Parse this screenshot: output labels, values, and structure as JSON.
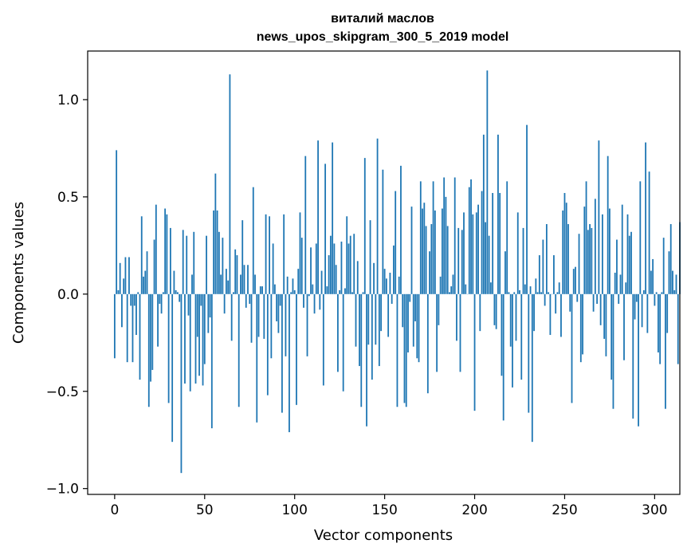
{
  "chart_data": {
    "type": "bar",
    "title": "виталий маслов",
    "subtitle": "news_upos_skipgram_300_5_2019 model",
    "xlabel": "Vector components",
    "ylabel": "Components values",
    "xlim": [
      -15,
      314
    ],
    "ylim": [
      -1.03,
      1.25
    ],
    "xticks": [
      0,
      50,
      100,
      150,
      200,
      250,
      300
    ],
    "xtick_labels": [
      "0",
      "50",
      "100",
      "150",
      "200",
      "250",
      "300"
    ],
    "yticks": [
      -1.0,
      -0.5,
      0.0,
      0.5,
      1.0
    ],
    "ytick_labels": [
      "−1.0",
      "−0.5",
      "0.0",
      "0.5",
      "1.0"
    ],
    "grid": false,
    "bar_color": "#1f77b4",
    "values": [
      -0.33,
      0.74,
      0.02,
      0.16,
      -0.17,
      0.08,
      0.19,
      -0.35,
      0.19,
      -0.06,
      -0.35,
      -0.06,
      -0.21,
      0.01,
      -0.44,
      0.4,
      0.09,
      0.12,
      0.22,
      -0.58,
      -0.45,
      -0.39,
      0.28,
      0.46,
      -0.27,
      -0.05,
      -0.1,
      0.01,
      0.44,
      0.41,
      -0.56,
      0.34,
      -0.76,
      0.12,
      0.02,
      0.01,
      -0.04,
      -0.92,
      0.33,
      -0.46,
      0.3,
      -0.11,
      -0.5,
      0.1,
      0.32,
      -0.46,
      -0.22,
      -0.42,
      -0.06,
      -0.47,
      -0.36,
      0.3,
      -0.2,
      -0.12,
      -0.69,
      0.43,
      0.62,
      0.43,
      0.32,
      0.1,
      0.29,
      -0.1,
      0.13,
      0.07,
      1.13,
      -0.24,
      0.01,
      0.23,
      0.2,
      -0.58,
      0.1,
      0.38,
      0.15,
      -0.07,
      0.15,
      -0.05,
      -0.25,
      0.55,
      0.1,
      -0.66,
      -0.22,
      0.04,
      0.04,
      -0.23,
      0.41,
      -0.52,
      0.4,
      -0.33,
      0.26,
      0.05,
      -0.14,
      -0.2,
      -0.06,
      -0.61,
      0.41,
      -0.32,
      0.09,
      -0.71,
      0.01,
      0.08,
      0.02,
      -0.57,
      0.13,
      0.42,
      0.29,
      -0.07,
      0.71,
      -0.32,
      -0.01,
      0.24,
      0.05,
      -0.1,
      0.26,
      0.79,
      -0.08,
      0.12,
      -0.47,
      0.67,
      0.04,
      0.2,
      0.3,
      0.78,
      0.26,
      0.15,
      -0.4,
      0.02,
      0.27,
      -0.5,
      0.03,
      0.4,
      0.26,
      0.3,
      0.01,
      0.31,
      -0.27,
      0.17,
      -0.37,
      -0.58,
      0.01,
      0.7,
      -0.68,
      -0.26,
      0.38,
      -0.44,
      0.16,
      -0.26,
      0.8,
      -0.37,
      -0.19,
      0.64,
      0.13,
      0.08,
      -0.22,
      0.11,
      -0.05,
      0.25,
      0.53,
      -0.58,
      0.09,
      0.66,
      -0.17,
      -0.56,
      -0.58,
      -0.3,
      -0.04,
      0.45,
      -0.27,
      -0.14,
      -0.33,
      -0.35,
      0.58,
      0.44,
      0.47,
      0.35,
      -0.51,
      0.22,
      0.36,
      0.58,
      0.43,
      -0.4,
      -0.16,
      0.09,
      0.44,
      0.6,
      0.5,
      0.35,
      0.01,
      0.04,
      0.1,
      0.6,
      -0.24,
      0.34,
      -0.4,
      0.33,
      0.42,
      0.05,
      0.0,
      0.55,
      0.59,
      0.41,
      -0.6,
      0.42,
      0.46,
      -0.19,
      0.53,
      0.82,
      0.37,
      1.15,
      0.3,
      0.06,
      0.52,
      -0.16,
      -0.18,
      0.82,
      0.52,
      -0.42,
      -0.65,
      0.22,
      0.58,
      0.01,
      -0.27,
      -0.48,
      0.01,
      -0.24,
      0.42,
      0.02,
      -0.44,
      0.34,
      0.05,
      0.87,
      -0.61,
      0.04,
      -0.76,
      -0.19,
      0.08,
      0.01,
      0.2,
      0.01,
      0.28,
      -0.06,
      0.36,
      0.01,
      -0.21,
      0.0,
      0.2,
      -0.1,
      0.01,
      0.06,
      -0.22,
      0.43,
      0.52,
      0.47,
      0.36,
      -0.09,
      -0.56,
      0.13,
      0.14,
      -0.04,
      0.31,
      -0.35,
      -0.31,
      0.45,
      0.58,
      0.33,
      0.36,
      0.34,
      -0.09,
      0.49,
      -0.05,
      0.79,
      -0.16,
      0.41,
      -0.23,
      -0.32,
      0.71,
      0.44,
      -0.44,
      -0.59,
      0.11,
      0.28,
      -0.05,
      0.1,
      0.46,
      -0.34,
      0.06,
      0.41,
      0.3,
      0.32,
      -0.64,
      -0.13,
      -0.04,
      -0.68,
      0.58,
      -0.17,
      0.02,
      0.78,
      -0.2,
      0.63,
      0.12,
      0.18,
      -0.06,
      0.01,
      -0.3,
      -0.36,
      0.01,
      0.29,
      -0.59,
      -0.2,
      0.22,
      0.36,
      0.12,
      0.02,
      0.1,
      -0.36,
      0.37
    ]
  }
}
